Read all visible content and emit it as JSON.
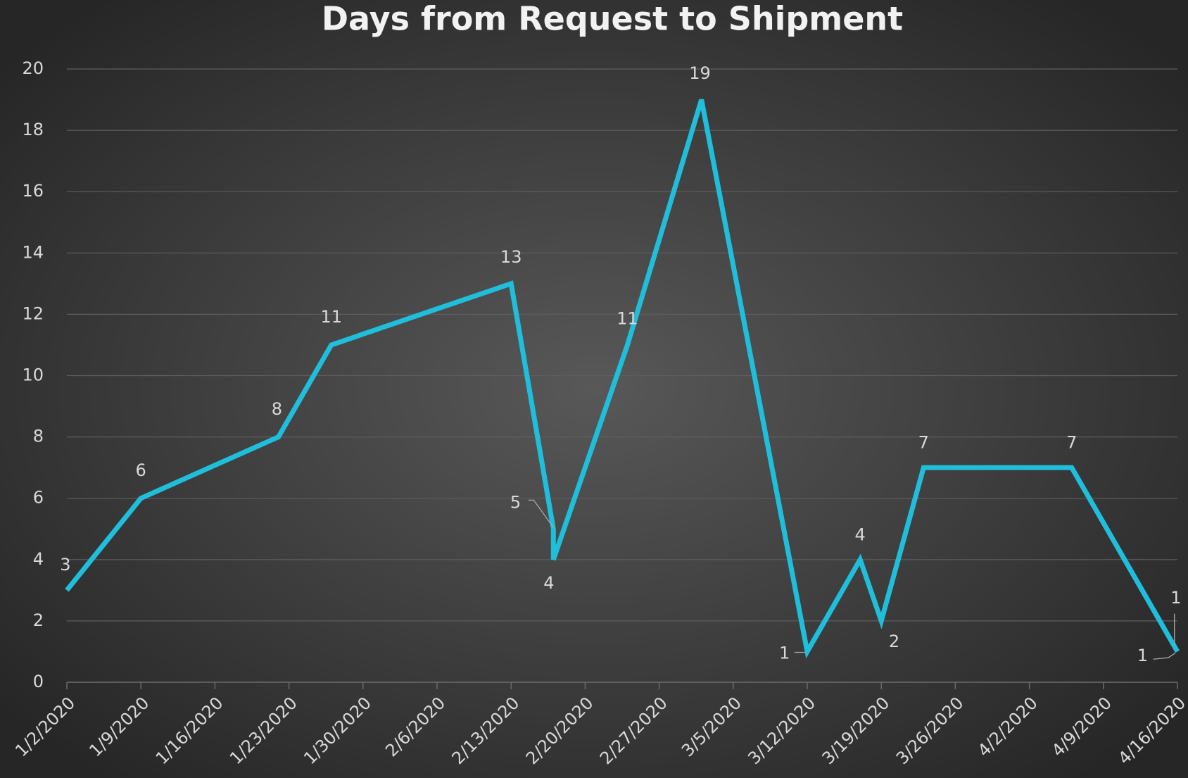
{
  "chart_data": {
    "type": "line",
    "title": "Days from Request to Shipment",
    "x": [
      "2020-01-02",
      "2020-01-09",
      "2020-01-22",
      "2020-01-27",
      "2020-02-13",
      "2020-02-17",
      "2020-02-17",
      "2020-02-24",
      "2020-03-02",
      "2020-03-12",
      "2020-03-17",
      "2020-03-19",
      "2020-03-23",
      "2020-04-06",
      "2020-04-16",
      "2020-04-16"
    ],
    "series": [
      {
        "name": "Days",
        "color": "#1fbfdc",
        "values": [
          3,
          6,
          8,
          11,
          13,
          5,
          4,
          11,
          19,
          1,
          4,
          2,
          7,
          7,
          1,
          1
        ]
      }
    ],
    "xlim": [
      "2020-01-02",
      "2020-04-16"
    ],
    "xticks": [
      {
        "value": "2020-01-02",
        "label": "1/2/2020"
      },
      {
        "value": "2020-01-09",
        "label": "1/9/2020"
      },
      {
        "value": "2020-01-16",
        "label": "1/16/2020"
      },
      {
        "value": "2020-01-23",
        "label": "1/23/2020"
      },
      {
        "value": "2020-01-30",
        "label": "1/30/2020"
      },
      {
        "value": "2020-02-06",
        "label": "2/6/2020"
      },
      {
        "value": "2020-02-13",
        "label": "2/13/2020"
      },
      {
        "value": "2020-02-20",
        "label": "2/20/2020"
      },
      {
        "value": "2020-02-27",
        "label": "2/27/2020"
      },
      {
        "value": "2020-03-05",
        "label": "3/5/2020"
      },
      {
        "value": "2020-03-12",
        "label": "3/12/2020"
      },
      {
        "value": "2020-03-19",
        "label": "3/19/2020"
      },
      {
        "value": "2020-03-26",
        "label": "3/26/2020"
      },
      {
        "value": "2020-04-02",
        "label": "4/2/2020"
      },
      {
        "value": "2020-04-09",
        "label": "4/9/2020"
      },
      {
        "value": "2020-04-16",
        "label": "4/16/2020"
      }
    ],
    "ylim": [
      0,
      20
    ],
    "yticks": [
      0,
      2,
      4,
      6,
      8,
      10,
      12,
      14,
      16,
      18,
      20
    ],
    "grid": true
  }
}
